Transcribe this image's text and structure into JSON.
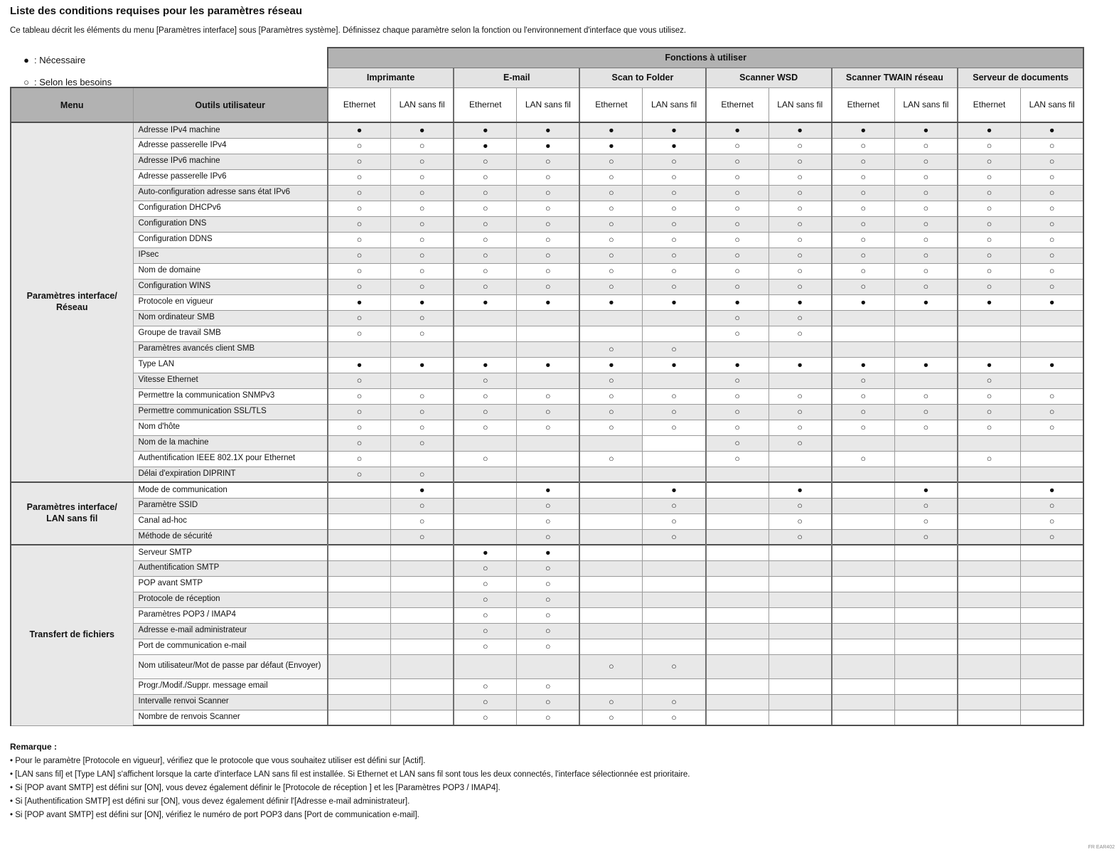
{
  "colors": {
    "hdr-dark": "#b2b2b2",
    "hdr-mid": "#e3e3e3",
    "stripe": "#e8e8e8",
    "cell-white": "#ffffff",
    "bd": "#9a9a9a",
    "bdk": "#4f4f4f",
    "txt": "#111111",
    "light": "#f6f6f6",
    "code": "#8a8a8a"
  },
  "page": {
    "title": "Liste des conditions requises pour les paramètres réseau",
    "subtitle": "Ce tableau décrit les éléments du menu [Paramètres interface] sous [Paramètres système]. Définissez chaque paramètre selon la fonction ou l'environnement d'interface que vous utilisez.",
    "footer_code": "FR EAR402"
  },
  "legend": {
    "items": [
      {
        "symbol": "●",
        "text": ": Nécessaire"
      },
      {
        "symbol": "○",
        "text": ": Selon les besoins"
      }
    ]
  },
  "table": {
    "functions_header": "Fonctions à utiliser",
    "col_menu": "Menu",
    "col_tools": "Outils utilisateur",
    "function_groups": [
      "Imprimante",
      "E-mail",
      "Scan to Folder",
      "Scanner WSD",
      "Scanner TWAIN réseau",
      "Serveur de documents"
    ],
    "sub_columns": [
      "Ethernet",
      "LAN sans fil"
    ],
    "symbols": {
      "F": "●",
      "O": "○",
      ".": "",
      "W": ""
    },
    "sections": [
      {
        "menu": "Paramètres interface/\nRéseau",
        "rows": [
          {
            "label": "Adresse IPv4 machine",
            "cells": "FFFFFFFFFFFF"
          },
          {
            "label": "Adresse passerelle IPv4",
            "cells": "OOFFFFOOOOOO"
          },
          {
            "label": "Adresse IPv6 machine",
            "cells": "OOOOOOOOOOOO"
          },
          {
            "label": "Adresse passerelle IPv6",
            "cells": "OOOOOOOOOOOO"
          },
          {
            "label": "Auto-configuration adresse sans état IPv6",
            "cells": "OOOOOOOOOOOO"
          },
          {
            "label": "Configuration DHCPv6",
            "cells": "OOOOOOOOOOOO"
          },
          {
            "label": "Configuration DNS",
            "cells": "OOOOOOOOOOOO"
          },
          {
            "label": "Configuration DDNS",
            "cells": "OOOOOOOOOOOO"
          },
          {
            "label": "IPsec",
            "cells": "OOOOOOOOOOOO"
          },
          {
            "label": "Nom de domaine",
            "cells": "OOOOOOOOOOOO"
          },
          {
            "label": "Configuration WINS",
            "cells": "OOOOOOOOOOOO"
          },
          {
            "label": "Protocole en vigueur",
            "cells": "FFFFFFFFFFFF"
          },
          {
            "label": "Nom ordinateur SMB",
            "cells": "OO....OO...."
          },
          {
            "label": "Groupe de travail SMB",
            "cells": "OO....OO...."
          },
          {
            "label": "Paramètres avancés client SMB",
            "cells": "....OO......"
          },
          {
            "label": "Type LAN",
            "cells": "FFFFFFFFFFFF"
          },
          {
            "label": "Vitesse Ethernet",
            "cells": "O.O.O.O.O.O."
          },
          {
            "label": "Permettre la communication SNMPv3",
            "cells": "OOOOOOOOOOOO"
          },
          {
            "label": "Permettre communication SSL/TLS",
            "cells": "OOOOOOOOOOOO"
          },
          {
            "label": "Nom d'hôte",
            "cells": "OOOOOOOOOOOO"
          },
          {
            "label": "Nom de la machine",
            "cells": "OO...WOO...."
          },
          {
            "label": "Authentification IEEE 802.1X pour Ethernet",
            "cells": "O.O.O.O.O.O."
          },
          {
            "label": "Délai d'expiration DIPRINT",
            "cells": "OO.........."
          }
        ]
      },
      {
        "menu": "Paramètres interface/\nLAN sans fil",
        "rows": [
          {
            "label": "Mode de communication",
            "cells": ".F.F.F.F.F.F"
          },
          {
            "label": "Paramètre SSID",
            "cells": ".O.O.O.O.O.O"
          },
          {
            "label": "Canal ad-hoc",
            "cells": ".O.O.O.O.O.O"
          },
          {
            "label": "Méthode de sécurité",
            "cells": ".O.O.O.O.O.O"
          }
        ]
      },
      {
        "menu": "Transfert de fichiers",
        "rows": [
          {
            "label": "Serveur SMTP",
            "cells": "..FF........"
          },
          {
            "label": "Authentification SMTP",
            "cells": "..OO........"
          },
          {
            "label": "POP avant SMTP",
            "cells": "..OO........"
          },
          {
            "label": "Protocole de réception",
            "cells": "..OO........"
          },
          {
            "label": "Paramètres POP3 / IMAP4",
            "cells": "..OO........"
          },
          {
            "label": "Adresse e-mail administrateur",
            "cells": "..OO........"
          },
          {
            "label": "Port de communication e-mail",
            "cells": "..OO........"
          },
          {
            "label": "Nom utilisateur/Mot de passe par défaut (Envoyer)",
            "cells": "....OO......",
            "tall": true,
            "label_light": true
          },
          {
            "label": "Progr./Modif./Suppr. message email",
            "cells": "..OO........"
          },
          {
            "label": "Intervalle renvoi Scanner",
            "cells": "..OOOO......"
          },
          {
            "label": "Nombre de renvois Scanner",
            "cells": "..OOOO......"
          }
        ]
      }
    ]
  },
  "notes": {
    "title": "Remarque :",
    "items": [
      "Pour le paramètre [Protocole en vigueur], vérifiez que le protocole que vous souhaitez utiliser est défini sur [Actif].",
      "[LAN sans fil] et [Type LAN] s'affichent lorsque la carte d'interface LAN sans fil est installée. Si Ethernet et LAN sans fil sont tous les deux connectés, l'interface sélectionnée est prioritaire.",
      "Si [POP avant SMTP] est défini sur [ON], vous devez également définir le [Protocole de réception ] et les [Paramètres POP3 / IMAP4].",
      "Si [Authentification SMTP] est défini sur [ON], vous devez également définir l'[Adresse e-mail administrateur].",
      "Si [POP avant SMTP] est défini sur [ON], vérifiez le numéro de port POP3 dans [Port de communication e-mail]."
    ]
  }
}
